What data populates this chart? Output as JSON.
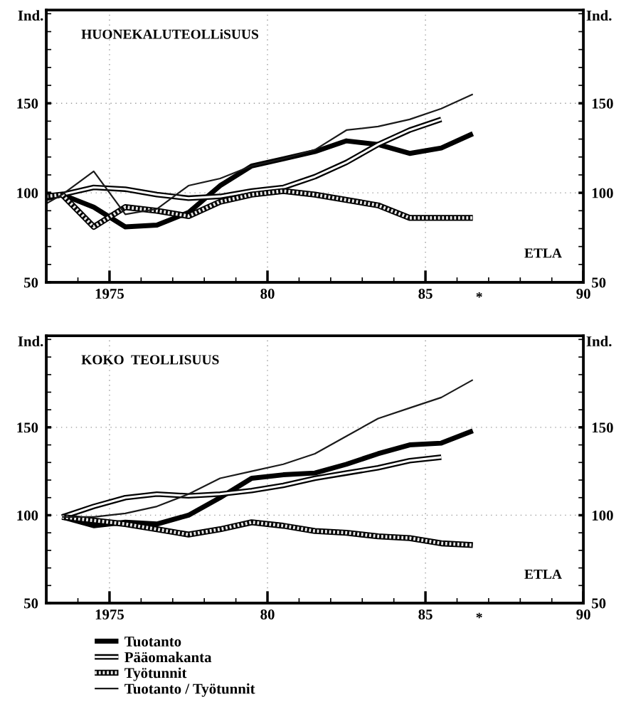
{
  "chart_data": [
    {
      "type": "line",
      "title": "HUONEKALUTEOLLiSUUS",
      "ylabel": "Ind.",
      "y2label": "Ind.",
      "x": [
        1973.0,
        1973.5,
        1974.5,
        1975.5,
        1976.5,
        1977.5,
        1978.5,
        1979.5,
        1980.5,
        1981.5,
        1982.5,
        1983.5,
        1984.5,
        1985.5,
        1986.5
      ],
      "series": [
        {
          "color": "#000000",
          "values": [
            97,
            99,
            92,
            81,
            82,
            89,
            104,
            115,
            119,
            123,
            129,
            127,
            122,
            125,
            133
          ]
        },
        {
          "color": "#000000",
          "values": [
            97,
            99,
            103,
            102,
            99,
            97,
            98,
            101,
            103,
            109,
            117,
            127,
            135,
            141,
            null
          ]
        },
        {
          "color": "#000000",
          "values": [
            98,
            99,
            81,
            92,
            90,
            87,
            95,
            99,
            101,
            99,
            96,
            93,
            86,
            86,
            86
          ]
        },
        {
          "color": "#1a1a1a",
          "values": [
            94,
            99,
            112,
            88,
            91,
            104,
            108,
            115,
            119,
            124,
            135,
            137,
            141,
            147,
            155
          ]
        }
      ],
      "xlim": [
        1973,
        1990
      ],
      "ylim": [
        50,
        202
      ],
      "y2lim": [
        50,
        202
      ],
      "xticks": [
        {
          "value": 1974,
          "label": null
        },
        {
          "value": 1975,
          "label": "1975"
        },
        {
          "value": 1976,
          "label": null
        },
        {
          "value": 1977,
          "label": null
        },
        {
          "value": 1978,
          "label": null
        },
        {
          "value": 1979,
          "label": null
        },
        {
          "value": 1980,
          "label": "80"
        },
        {
          "value": 1981,
          "label": null
        },
        {
          "value": 1982,
          "label": null
        },
        {
          "value": 1983,
          "label": null
        },
        {
          "value": 1984,
          "label": null
        },
        {
          "value": 1985,
          "label": "85"
        },
        {
          "value": 1986,
          "label": null
        },
        {
          "value": 1987,
          "label": null
        },
        {
          "value": 1988,
          "label": null
        },
        {
          "value": 1989,
          "label": null
        },
        {
          "value": 1990,
          "label": "90"
        }
      ],
      "yticks": [
        50,
        {
          "value": 60,
          "label": null
        },
        {
          "value": 70,
          "label": null
        },
        {
          "value": 80,
          "label": null
        },
        {
          "value": 90,
          "label": null
        },
        100,
        {
          "value": 110,
          "label": null
        },
        {
          "value": 120,
          "label": null
        },
        {
          "value": 130,
          "label": null
        },
        {
          "value": 140,
          "label": null
        },
        150,
        {
          "value": 160,
          "label": null
        },
        {
          "value": 170,
          "label": null
        },
        {
          "value": 180,
          "label": null
        },
        {
          "value": 190,
          "label": null
        },
        {
          "value": 200,
          "label": null
        }
      ],
      "y2ticks": [
        50,
        {
          "value": 60,
          "label": null
        },
        {
          "value": 70,
          "label": null
        },
        {
          "value": 80,
          "label": null
        },
        {
          "value": 90,
          "label": null
        },
        100,
        {
          "value": 110,
          "label": null
        },
        {
          "value": 120,
          "label": null
        },
        {
          "value": 130,
          "label": null
        },
        {
          "value": 140,
          "label": null
        },
        150,
        {
          "value": 160,
          "label": null
        },
        {
          "value": 170,
          "label": null
        },
        {
          "value": 180,
          "label": null
        },
        {
          "value": 190,
          "label": null
        },
        {
          "value": 200,
          "label": null
        }
      ],
      "annotations": [
        "*",
        "ETLA"
      ],
      "grid": true
    },
    {
      "type": "line",
      "title": "KOKO  TEOLLISUUS",
      "ylabel": "Ind.",
      "y2label": "Ind.",
      "x": [
        1973.5,
        1974.5,
        1975.5,
        1976.5,
        1977.5,
        1978.5,
        1979.5,
        1980.5,
        1981.5,
        1982.5,
        1983.5,
        1984.5,
        1985.5,
        1986.5
      ],
      "series": [
        {
          "name": "Tuotanto",
          "color": "#000000",
          "values": [
            99,
            94,
            96,
            95,
            100,
            110,
            121,
            123,
            124,
            129,
            135,
            140,
            141,
            148
          ]
        },
        {
          "name": "Pääomakanta",
          "color": "#000000",
          "values": [
            99,
            105,
            110,
            112,
            111,
            112,
            114,
            117,
            121,
            124,
            127,
            131,
            133,
            null
          ]
        },
        {
          "name": "Työtunnit",
          "color": "#000000",
          "values": [
            99,
            97,
            95,
            92,
            89,
            92,
            96,
            94,
            91,
            90,
            88,
            87,
            84,
            83
          ]
        },
        {
          "name": "Tuotanto / Työtunnit",
          "color": "#1a1a1a",
          "values": [
            99,
            99,
            101,
            105,
            112,
            121,
            125,
            129,
            135,
            145,
            155,
            161,
            167,
            177
          ]
        }
      ],
      "xlim": [
        1973,
        1990
      ],
      "ylim": [
        50,
        202
      ],
      "y2lim": [
        50,
        202
      ],
      "xticks": [
        {
          "value": 1974,
          "label": null
        },
        {
          "value": 1975,
          "label": "1975"
        },
        {
          "value": 1976,
          "label": null
        },
        {
          "value": 1977,
          "label": null
        },
        {
          "value": 1978,
          "label": null
        },
        {
          "value": 1979,
          "label": null
        },
        {
          "value": 1980,
          "label": "80"
        },
        {
          "value": 1981,
          "label": null
        },
        {
          "value": 1982,
          "label": null
        },
        {
          "value": 1983,
          "label": null
        },
        {
          "value": 1984,
          "label": null
        },
        {
          "value": 1985,
          "label": "85"
        },
        {
          "value": 1986,
          "label": null
        },
        {
          "value": 1987,
          "label": null
        },
        {
          "value": 1988,
          "label": null
        },
        {
          "value": 1989,
          "label": null
        },
        {
          "value": 1990,
          "label": "90"
        }
      ],
      "yticks": [
        50,
        {
          "value": 60,
          "label": null
        },
        {
          "value": 70,
          "label": null
        },
        {
          "value": 80,
          "label": null
        },
        {
          "value": 90,
          "label": null
        },
        100,
        {
          "value": 110,
          "label": null
        },
        {
          "value": 120,
          "label": null
        },
        {
          "value": 130,
          "label": null
        },
        {
          "value": 140,
          "label": null
        },
        150,
        {
          "value": 160,
          "label": null
        },
        {
          "value": 170,
          "label": null
        },
        {
          "value": 180,
          "label": null
        },
        {
          "value": 190,
          "label": null
        },
        {
          "value": 200,
          "label": null
        }
      ],
      "y2ticks": [
        50,
        {
          "value": 60,
          "label": null
        },
        {
          "value": 70,
          "label": null
        },
        {
          "value": 80,
          "label": null
        },
        {
          "value": 90,
          "label": null
        },
        100,
        {
          "value": 110,
          "label": null
        },
        {
          "value": 120,
          "label": null
        },
        {
          "value": 130,
          "label": null
        },
        {
          "value": 140,
          "label": null
        },
        150,
        {
          "value": 160,
          "label": null
        },
        {
          "value": 170,
          "label": null
        },
        {
          "value": 180,
          "label": null
        },
        {
          "value": 190,
          "label": null
        },
        {
          "value": 200,
          "label": null
        }
      ],
      "annotations": [
        "*",
        "ETLA"
      ],
      "grid": true,
      "legend": "bottom"
    }
  ]
}
